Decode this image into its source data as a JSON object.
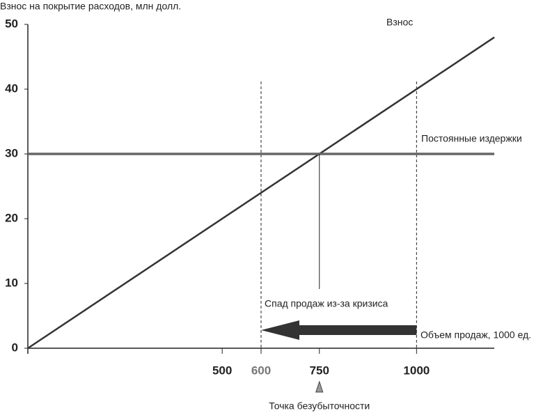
{
  "chart_data": {
    "type": "line",
    "y_axis_title": "Взнос на покрытие расходов, млн долл.",
    "x": [
      0,
      1200
    ],
    "series": [
      {
        "name": "Взнос",
        "color": "#333333",
        "values": [
          0,
          48
        ]
      },
      {
        "name": "Постоянные издержки",
        "color": "#666666",
        "values": [
          30,
          30
        ]
      }
    ],
    "xlim": [
      0,
      1200
    ],
    "ylim": [
      0,
      50
    ],
    "xticks": [
      500,
      600,
      750,
      1000
    ],
    "xtick_colors": [
      "#222222",
      "#777777",
      "#222222",
      "#222222"
    ],
    "yticks": [
      0,
      10,
      20,
      30,
      40,
      50
    ],
    "annotations": {
      "decline": "Спад продаж из-за кризиса",
      "x_axis_title": "Объем продаж, 1000 ед.",
      "break_even": "Точка безубыточности"
    },
    "grid": false
  }
}
